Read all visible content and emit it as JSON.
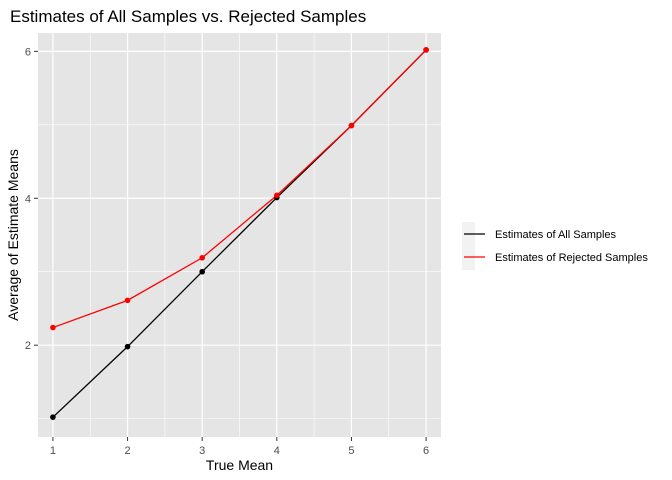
{
  "chart_data": {
    "type": "line",
    "title": "Estimates of All Samples vs. Rejected Samples",
    "xlabel": "True Mean",
    "ylabel": "Average of Estimate Means",
    "x": [
      1,
      2,
      3,
      4,
      5,
      6
    ],
    "xlim": [
      0.8,
      6.2
    ],
    "ylim": [
      0.75,
      6.25
    ],
    "x_ticks": [
      "1",
      "2",
      "3",
      "4",
      "5",
      "6"
    ],
    "y_ticks": [
      "2",
      "4",
      "6"
    ],
    "grid": true,
    "legend_position": "right",
    "series": [
      {
        "name": "Estimates of All Samples",
        "color": "#000000",
        "values": [
          1.02,
          1.98,
          3.0,
          4.01,
          4.99,
          6.02
        ]
      },
      {
        "name": "Estimates of Rejected Samples",
        "color": "#ff0000",
        "values": [
          2.24,
          2.61,
          3.19,
          4.04,
          4.99,
          6.02
        ]
      }
    ],
    "panel_background": "#e5e5e5",
    "grid_color": "#ffffff"
  }
}
